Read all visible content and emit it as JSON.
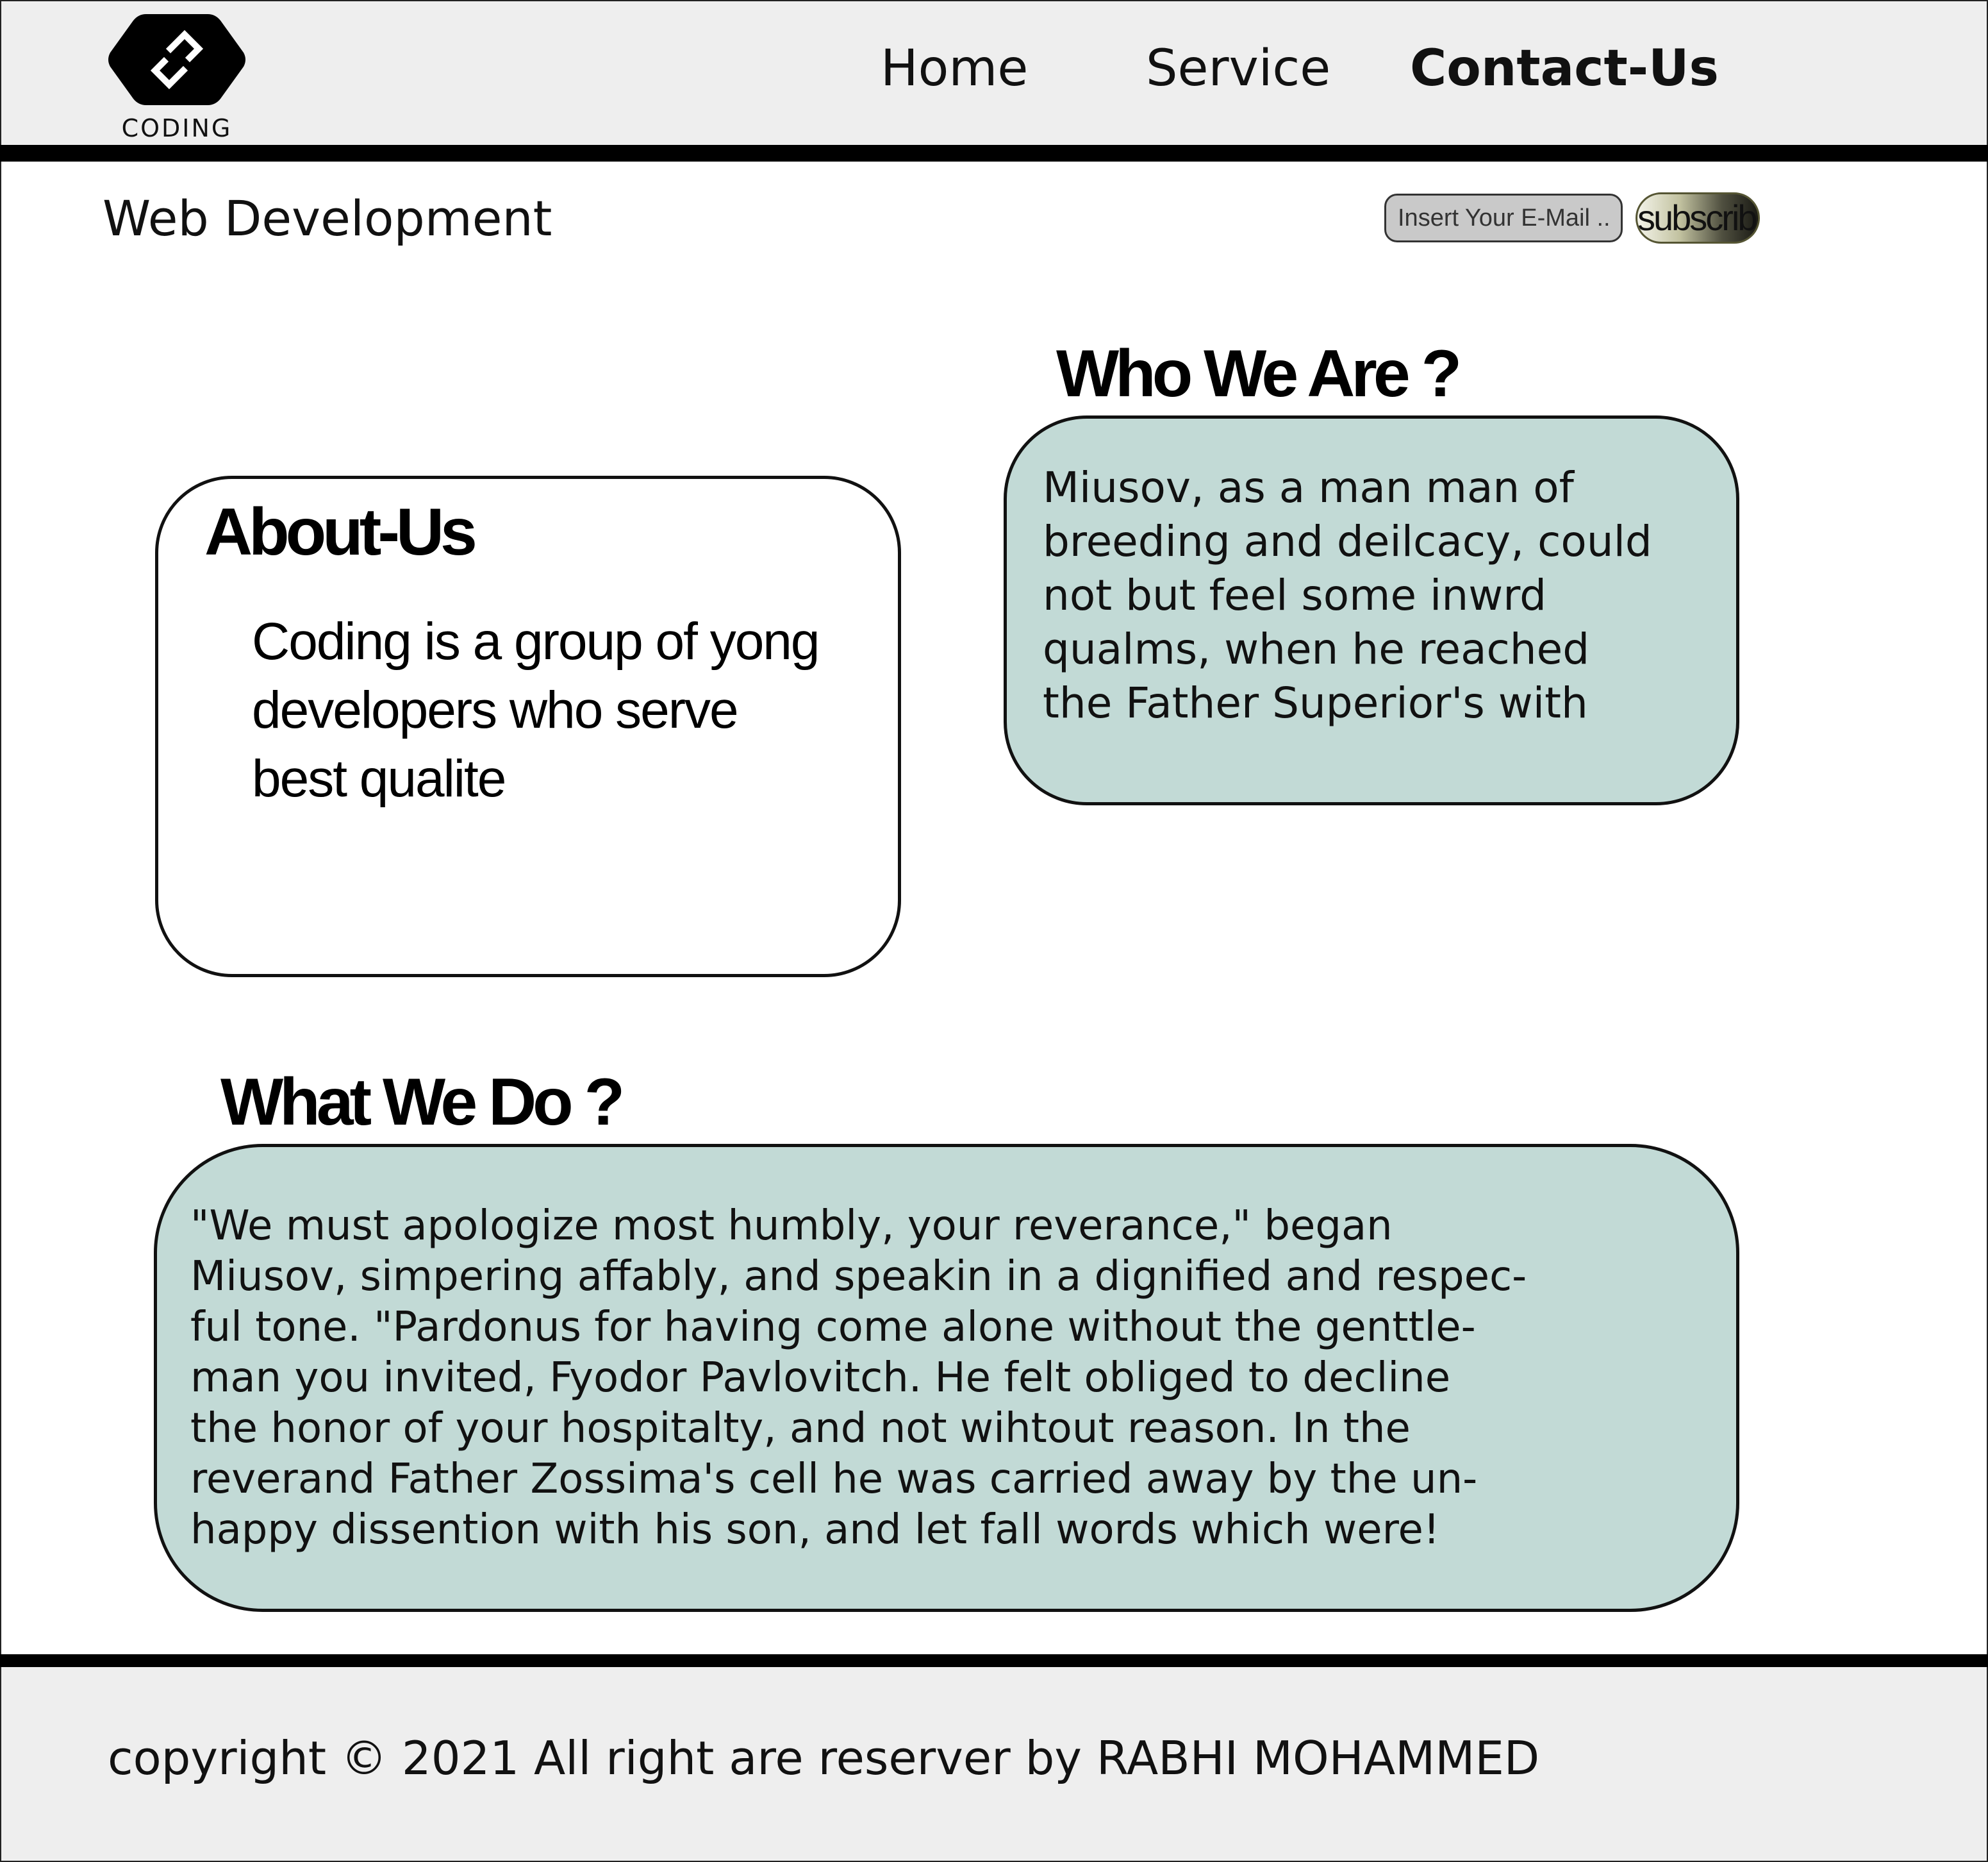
{
  "brand": {
    "logo_text": "CODING",
    "logo_icon": "coding-logo-icon"
  },
  "nav": {
    "home": "Home",
    "service": "Service",
    "contact": "Contact-Us"
  },
  "subheader": {
    "title": "Web Development",
    "email_placeholder": "Insert Your E-Mail ...",
    "subscribe_label": "subscribe"
  },
  "about": {
    "heading": "About-Us",
    "text": "Coding is a group of yong\ndevelopers who serve\nbest qualite"
  },
  "who": {
    "heading": "Who We Are ?",
    "text": "Miusov, as a man man of\nbreeding and deilcacy, could\nnot but feel some inwrd\nqualms, when he reached\nthe Father Superior's with"
  },
  "what": {
    "heading": "What We Do ?",
    "text": "\"We must apologize most humbly, your reverance,\" began\nMiusov, simpering affably, and speakin in a dignified and respec-\nful tone. \"Pardonus for having come alone without the genttle-\nman you invited, Fyodor Pavlovitch. He felt obliged to decline\nthe honor of your hospitalty, and not wihtout reason. In the\nreverand Father Zossima's cell he was carried away by the un-\nhappy dissention with his son, and let fall words which were!"
  },
  "footer": {
    "copyright": "copyright ©  2021 All right are reserver by RABHI MOHAMMED"
  },
  "colors": {
    "header_bg": "#eeeeee",
    "card_teal": "#c2dad6",
    "rule": "#000000"
  }
}
